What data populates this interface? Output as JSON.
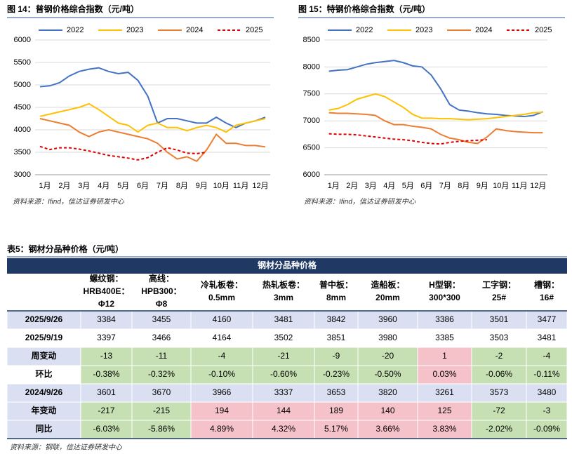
{
  "chart_data": [
    {
      "type": "line",
      "title": "图 14：普钢价格综合指数（元/吨）",
      "source": "资料来源：Ifind，信达证券研发中心",
      "categories": [
        "1月",
        null,
        "2月",
        null,
        "3月",
        null,
        "4月",
        null,
        "5月",
        null,
        "6月",
        null,
        "7月",
        null,
        "8月",
        null,
        "9月",
        null,
        "10月",
        null,
        "11月",
        null,
        "12月",
        null
      ],
      "ylim": [
        3000,
        6000
      ],
      "yticks": [
        3000,
        3500,
        4000,
        4500,
        5000,
        5500,
        6000
      ],
      "grid": true,
      "series": [
        {
          "name": "2022",
          "color": "#4472c4",
          "style": "solid",
          "values": [
            4960,
            4980,
            5050,
            5200,
            5300,
            5350,
            5380,
            5300,
            5250,
            5280,
            5100,
            4750,
            4150,
            4250,
            4250,
            4200,
            4150,
            4150,
            4280,
            4150,
            4050,
            4150,
            4200,
            4280
          ]
        },
        {
          "name": "2023",
          "color": "#ffc000",
          "style": "solid",
          "values": [
            4300,
            4350,
            4400,
            4450,
            4500,
            4580,
            4450,
            4300,
            4150,
            4100,
            3950,
            4100,
            4150,
            4050,
            4050,
            3980,
            4050,
            4100,
            4050,
            3950,
            4100,
            4150,
            4200,
            4250
          ]
        },
        {
          "name": "2024",
          "color": "#ed7d31",
          "style": "solid",
          "values": [
            4250,
            4200,
            4150,
            4100,
            3950,
            3850,
            3950,
            4000,
            3950,
            3900,
            3850,
            3800,
            3700,
            3500,
            3350,
            3400,
            3300,
            3550,
            3900,
            3700,
            3700,
            3650,
            3650,
            3620
          ]
        },
        {
          "name": "2025",
          "color": "#e00000",
          "style": "dashed",
          "values": [
            3630,
            3560,
            3600,
            3600,
            3570,
            3530,
            3480,
            3430,
            3400,
            3370,
            3330,
            3380,
            3500,
            3600,
            3550,
            3480,
            3470,
            3500,
            null,
            null,
            null,
            null,
            null,
            null
          ]
        }
      ]
    },
    {
      "type": "line",
      "title": "图 15：特钢价格综合指数（元/吨）",
      "source": "资料来源：Ifind，信达证券研发中心",
      "categories": [
        "1月",
        null,
        "2月",
        null,
        "3月",
        null,
        "4月",
        null,
        "5月",
        null,
        "6月",
        null,
        "7月",
        null,
        "8月",
        null,
        "9月",
        null,
        "10月",
        null,
        "11月",
        null,
        "12月",
        null
      ],
      "ylim": [
        6000,
        8500
      ],
      "yticks": [
        6000,
        6500,
        7000,
        7500,
        8000,
        8500
      ],
      "grid": true,
      "series": [
        {
          "name": "2022",
          "color": "#4472c4",
          "style": "solid",
          "values": [
            7920,
            7940,
            7950,
            8000,
            8050,
            8080,
            8100,
            8120,
            8080,
            8020,
            8000,
            7850,
            7600,
            7300,
            7200,
            7180,
            7150,
            7130,
            7120,
            7100,
            7090,
            7080,
            7100,
            7170
          ]
        },
        {
          "name": "2023",
          "color": "#ffc000",
          "style": "solid",
          "values": [
            7200,
            7230,
            7300,
            7400,
            7450,
            7500,
            7450,
            7350,
            7250,
            7120,
            7050,
            7050,
            7040,
            7040,
            7030,
            7020,
            7030,
            7040,
            7060,
            7080,
            7100,
            7120,
            7150,
            7160
          ]
        },
        {
          "name": "2024",
          "color": "#ed7d31",
          "style": "solid",
          "values": [
            7150,
            7140,
            7140,
            7130,
            7120,
            7100,
            7000,
            6930,
            6930,
            6900,
            6880,
            6850,
            6750,
            6680,
            6650,
            6600,
            6580,
            6700,
            6850,
            6820,
            6800,
            6790,
            6780,
            6780
          ]
        },
        {
          "name": "2025",
          "color": "#e00000",
          "style": "dashed",
          "values": [
            6760,
            6750,
            6750,
            6740,
            6720,
            6700,
            6680,
            6660,
            6650,
            6630,
            6600,
            6580,
            6570,
            6600,
            6620,
            6630,
            6640,
            6650,
            null,
            null,
            null,
            null,
            null,
            null
          ]
        }
      ]
    }
  ],
  "table": {
    "caption": "表5：钢材分品种价格（元/吨）",
    "title": "钢材分品种价格",
    "headers": [
      [
        "螺纹钢：",
        "HRB400E：",
        "Φ12"
      ],
      [
        "高线：",
        "HPB300：",
        "Φ8"
      ],
      [
        "冷轧板卷：",
        "0.5mm"
      ],
      [
        "热轧板卷：",
        "3mm"
      ],
      [
        "普中板：",
        "8mm"
      ],
      [
        "造船板：",
        "20mm"
      ],
      [
        "H型钢：",
        "300*300"
      ],
      [
        "工字钢：",
        "25#"
      ],
      [
        "槽钢：",
        "16#"
      ]
    ],
    "rows": [
      [
        "2025/9/26",
        "3384",
        "3455",
        "4160",
        "3481",
        "3842",
        "3960",
        "3386",
        "3501",
        "3477"
      ],
      [
        "2025/9/19",
        "3397",
        "3466",
        "4164",
        "3502",
        "3851",
        "3980",
        "3385",
        "3503",
        "3481"
      ],
      [
        "周变动",
        "-13",
        "-11",
        "-4",
        "-21",
        "-9",
        "-20",
        "1",
        "-2",
        "-4"
      ],
      [
        "环比",
        "-0.38%",
        "-0.32%",
        "-0.10%",
        "-0.60%",
        "-0.23%",
        "-0.50%",
        "0.03%",
        "-0.06%",
        "-0.11%"
      ],
      [
        "2024/9/26",
        "3601",
        "3670",
        "3966",
        "3337",
        "3653",
        "3820",
        "3261",
        "3573",
        "3480"
      ],
      [
        "年变动",
        "-217",
        "-215",
        "194",
        "144",
        "189",
        "140",
        "125",
        "-72",
        "-3"
      ],
      [
        "同比",
        "-6.03%",
        "-5.86%",
        "4.89%",
        "4.32%",
        "5.17%",
        "3.66%",
        "3.83%",
        "-2.02%",
        "-0.09%"
      ]
    ],
    "source": "资料来源：钢联，信达证券研发中心"
  }
}
